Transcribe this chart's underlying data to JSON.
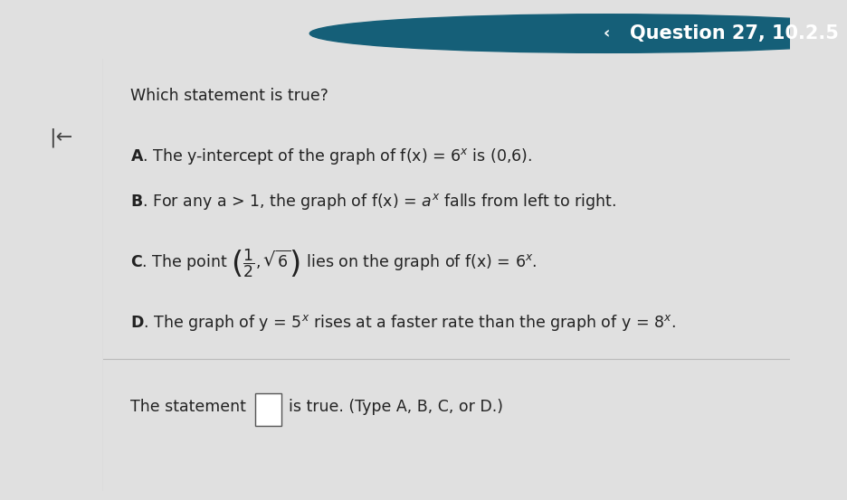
{
  "header_bg": "#1a7a9a",
  "header_text": "Question 27, 10.2.5",
  "header_text_color": "#ffffff",
  "header_fontsize": 15,
  "body_bg": "#e0e0e0",
  "left_panel_bg": "#f0f0f0",
  "main_bg": "#f8f8f8",
  "question_text": "Which statement is true?",
  "divider_color": "#bbbbbb",
  "text_color": "#222222",
  "fontsize_main": 12.5,
  "fontsize_answer": 12.5,
  "back_arrow": "|←"
}
